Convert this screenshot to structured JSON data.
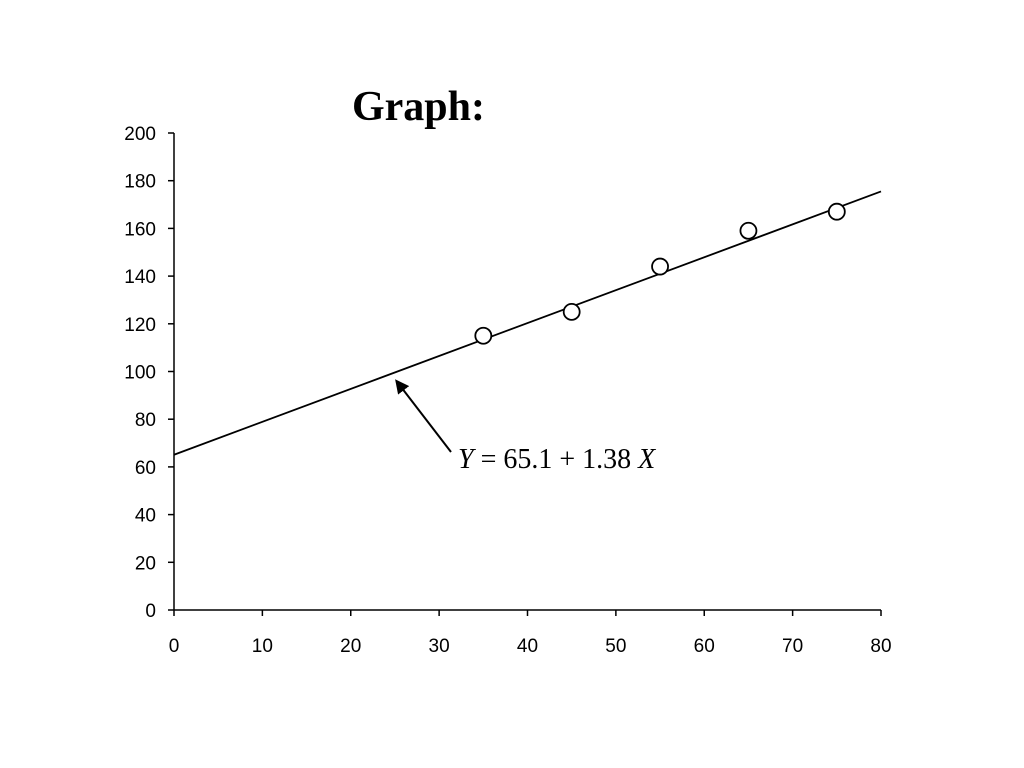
{
  "chart_data": {
    "type": "scatter",
    "title": "Graph:",
    "xlabel": "",
    "ylabel": "",
    "xlim": [
      0,
      80
    ],
    "ylim": [
      0,
      200
    ],
    "x_ticks": [
      0,
      10,
      20,
      30,
      40,
      50,
      60,
      70,
      80
    ],
    "y_ticks": [
      0,
      20,
      40,
      60,
      80,
      100,
      120,
      140,
      160,
      180,
      200
    ],
    "grid": false,
    "legend": "none",
    "points": [
      {
        "x": 35,
        "y": 115
      },
      {
        "x": 45,
        "y": 125
      },
      {
        "x": 55,
        "y": 144
      },
      {
        "x": 65,
        "y": 159
      },
      {
        "x": 75,
        "y": 167
      }
    ],
    "fit_line": {
      "intercept": 65.1,
      "slope": 1.38,
      "x_range": [
        0,
        80
      ]
    },
    "annotation": {
      "y_var": "Y",
      "equals": " = 65.1 + 1.38 ",
      "x_var": "X",
      "arrow_target": {
        "x": 25,
        "y": 97
      }
    },
    "colors": {
      "axis": "#000000",
      "line": "#000000",
      "marker_fill": "#ffffff",
      "marker_stroke": "#000000"
    }
  }
}
